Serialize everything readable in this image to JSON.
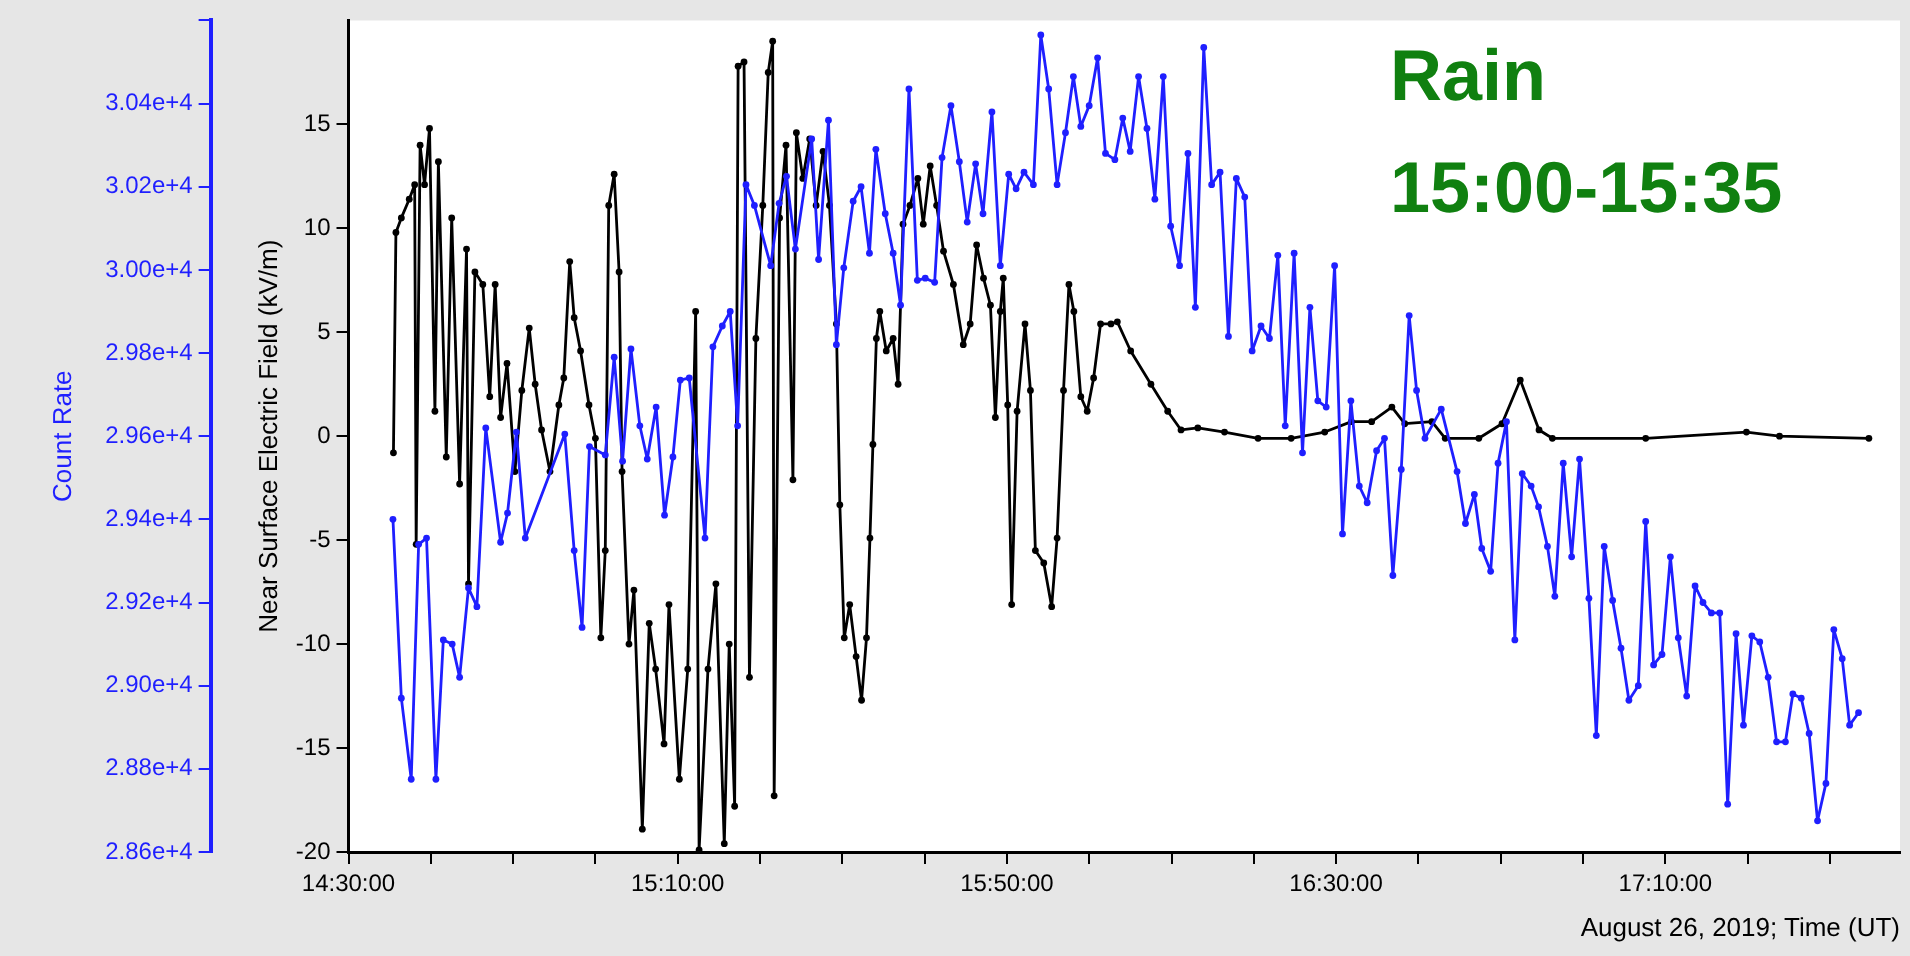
{
  "chart_data": {
    "type": "line",
    "xlabel": "August 26, 2019; Time (UT)",
    "ylabel": "Near Surface Electric Field (kV/m)",
    "y2label": "Count Rate",
    "annotations": [
      "Rain",
      "15:00-15:35"
    ],
    "xlim": [
      14.5,
      17.642
    ],
    "xticks": [
      {
        "value": 14.5,
        "label": "14:30:00"
      },
      {
        "value": 14.6667,
        "label": null
      },
      {
        "value": 14.8333,
        "label": null
      },
      {
        "value": 15,
        "label": null
      },
      {
        "value": 15.1667,
        "label": "15:10:00"
      },
      {
        "value": 15.3333,
        "label": null
      },
      {
        "value": 15.5,
        "label": null
      },
      {
        "value": 15.6667,
        "label": null
      },
      {
        "value": 15.8333,
        "label": "15:50:00"
      },
      {
        "value": 16,
        "label": null
      },
      {
        "value": 16.1667,
        "label": null
      },
      {
        "value": 16.3333,
        "label": null
      },
      {
        "value": 16.5,
        "label": "16:30:00"
      },
      {
        "value": 16.6667,
        "label": null
      },
      {
        "value": 16.8333,
        "label": null
      },
      {
        "value": 17,
        "label": null
      },
      {
        "value": 17.1667,
        "label": "17:10:00"
      },
      {
        "value": 17.3333,
        "label": null
      },
      {
        "value": 17.5,
        "label": null
      }
    ],
    "ylim": [
      -20,
      20
    ],
    "yticks": [
      -20,
      -15,
      -10,
      -5,
      0,
      5,
      10,
      15
    ],
    "y2lim": [
      28600,
      30600
    ],
    "y2ticks": [
      {
        "value": 28600,
        "label": "2.86e+4"
      },
      {
        "value": 28800,
        "label": "2.88e+4"
      },
      {
        "value": 29000,
        "label": "2.90e+4"
      },
      {
        "value": 29200,
        "label": "2.92e+4"
      },
      {
        "value": 29400,
        "label": "2.94e+4"
      },
      {
        "value": 29600,
        "label": "2.96e+4"
      },
      {
        "value": 29800,
        "label": "2.98e+4"
      },
      {
        "value": 30000,
        "label": "3.00e+4"
      },
      {
        "value": 30200,
        "label": "3.02e+4"
      },
      {
        "value": 30400,
        "label": "3.04e+4"
      },
      {
        "value": 30600,
        "label": null
      }
    ],
    "grid": false,
    "marker": "circle",
    "line_style": "solid",
    "series": [
      {
        "color": "#1f1fff",
        "axis": "y2",
        "x": [
          14.59,
          14.607,
          14.627,
          14.642,
          14.658,
          14.677,
          14.692,
          14.71,
          14.725,
          14.743,
          14.76,
          14.778,
          14.808,
          14.822,
          14.84,
          14.858,
          14.938,
          14.957,
          14.973,
          14.988,
          15.02,
          15.038,
          15.055,
          15.072,
          15.09,
          15.105,
          15.123,
          15.14,
          15.157,
          15.172,
          15.19,
          15.222,
          15.238,
          15.257,
          15.273,
          15.288,
          15.305,
          15.322,
          15.355,
          15.372,
          15.387,
          15.405,
          15.438,
          15.452,
          15.472,
          15.488,
          15.503,
          15.522,
          15.538,
          15.555,
          15.568,
          15.587,
          15.603,
          15.618,
          15.635,
          15.652,
          15.668,
          15.687,
          15.702,
          15.72,
          15.737,
          15.753,
          15.77,
          15.785,
          15.803,
          15.82,
          15.837,
          15.852,
          15.868,
          15.887,
          15.902,
          15.918,
          15.935,
          15.952,
          15.968,
          15.983,
          16.0,
          16.017,
          16.033,
          16.052,
          16.068,
          16.083,
          16.1,
          16.117,
          16.133,
          16.15,
          16.165,
          16.183,
          16.2,
          16.215,
          16.232,
          16.248,
          16.265,
          16.282,
          16.298,
          16.315,
          16.33,
          16.348,
          16.365,
          16.382,
          16.397,
          16.415,
          16.432,
          16.447,
          16.463,
          16.48,
          16.497,
          16.513,
          16.53,
          16.547,
          16.563,
          16.582,
          16.598,
          16.615,
          16.632,
          16.648,
          16.663,
          16.68,
          16.713,
          16.745,
          16.762,
          16.78,
          16.795,
          16.813,
          16.828,
          16.845,
          16.862,
          16.877,
          16.895,
          16.91,
          16.928,
          16.943,
          16.96,
          16.977,
          16.993,
          17.012,
          17.027,
          17.043,
          17.06,
          17.077,
          17.093,
          17.112,
          17.127,
          17.143,
          17.16,
          17.177,
          17.193,
          17.21,
          17.227,
          17.243,
          17.26,
          17.277,
          17.293,
          17.31,
          17.325,
          17.342,
          17.358,
          17.375,
          17.392,
          17.41,
          17.425,
          17.442,
          17.458,
          17.475,
          17.492,
          17.508,
          17.525,
          17.54,
          17.558
        ],
        "values": [
          29400,
          28970,
          28775,
          29340,
          29355,
          28775,
          29110,
          29100,
          29020,
          29235,
          29190,
          29620,
          29345,
          29415,
          29610,
          29355,
          29605,
          29325,
          29140,
          29575,
          29555,
          29790,
          29540,
          29810,
          29625,
          29545,
          29670,
          29410,
          29550,
          29735,
          29740,
          29355,
          29815,
          29865,
          29900,
          29625,
          30205,
          30155,
          30010,
          30160,
          30225,
          30050,
          30315,
          30025,
          30360,
          29820,
          30005,
          30165,
          30200,
          30040,
          30290,
          30135,
          30040,
          29915,
          30435,
          29975,
          29980,
          29970,
          30270,
          30395,
          30260,
          30115,
          30255,
          30135,
          30380,
          30010,
          30230,
          30195,
          30235,
          30205,
          30565,
          30435,
          30205,
          30330,
          30465,
          30345,
          30395,
          30510,
          30280,
          30265,
          30365,
          30285,
          30465,
          30340,
          30170,
          30465,
          30105,
          30010,
          30280,
          29910,
          30535,
          30205,
          30235,
          29840,
          30220,
          30175,
          29805,
          29865,
          29835,
          30035,
          29625,
          30040,
          29560,
          29910,
          29685,
          29670,
          30010,
          29365,
          29685,
          29480,
          29440,
          29565,
          29595,
          29265,
          29520,
          29890,
          29710,
          29595,
          29665,
          29515,
          29390,
          29460,
          29330,
          29275,
          29535,
          29635,
          29110,
          29510,
          29480,
          29430,
          29335,
          29215,
          29535,
          29310,
          29545,
          29210,
          28880,
          29335,
          29205,
          29090,
          28965,
          29000,
          29395,
          29050,
          29075,
          29310,
          29115,
          28975,
          29240,
          29200,
          29175,
          29175,
          28715,
          29125,
          28905,
          29120,
          29105,
          29020,
          28865,
          28865,
          28980,
          28970,
          28885,
          28675,
          28765,
          29135,
          29065,
          28905,
          28935
        ]
      },
      {
        "color": "#000000",
        "x": [
          14.591,
          14.596,
          14.607,
          14.623,
          14.634,
          14.637,
          14.645,
          14.654,
          14.664,
          14.675,
          14.682,
          14.698,
          14.709,
          14.725,
          14.739,
          14.743,
          14.756,
          14.772,
          14.786,
          14.797,
          14.808,
          14.821,
          14.837,
          14.851,
          14.866,
          14.878,
          14.891,
          14.908,
          14.926,
          14.936,
          14.948,
          14.957,
          14.97,
          14.987,
          15.0,
          15.011,
          15.02,
          15.027,
          15.038,
          15.048,
          15.054,
          15.068,
          15.078,
          15.095,
          15.109,
          15.122,
          15.139,
          15.149,
          15.17,
          15.187,
          15.203,
          15.21,
          15.228,
          15.244,
          15.261,
          15.271,
          15.282,
          15.289,
          15.301,
          15.312,
          15.325,
          15.339,
          15.35,
          15.359,
          15.362,
          15.373,
          15.386,
          15.4,
          15.407,
          15.42,
          15.434,
          15.447,
          15.461,
          15.474,
          15.488,
          15.495,
          15.504,
          15.515,
          15.528,
          15.539,
          15.549,
          15.556,
          15.562,
          15.569,
          15.576,
          15.589,
          15.603,
          15.613,
          15.623,
          15.637,
          15.653,
          15.664,
          15.678,
          15.691,
          15.705,
          15.725,
          15.745,
          15.759,
          15.772,
          15.786,
          15.8,
          15.81,
          15.82,
          15.826,
          15.835,
          15.843,
          15.854,
          15.87,
          15.881,
          15.891,
          15.908,
          15.924,
          15.935,
          15.948,
          15.959,
          15.969,
          15.983,
          15.996,
          16.009,
          16.023,
          16.044,
          16.057,
          16.084,
          16.125,
          16.159,
          16.186,
          16.22,
          16.274,
          16.342,
          16.409,
          16.477,
          16.531,
          16.572,
          16.613,
          16.639,
          16.694,
          16.721,
          16.789,
          16.836,
          16.873,
          16.911,
          16.938,
          17.127,
          17.331,
          17.398,
          17.579
        ],
        "values": [
          -0.8,
          9.8,
          10.5,
          11.4,
          12.1,
          -5.2,
          14.0,
          12.1,
          14.8,
          1.2,
          13.2,
          -1.0,
          10.5,
          -2.3,
          9.0,
          -7.1,
          7.9,
          7.3,
          1.9,
          7.3,
          0.9,
          3.5,
          -1.7,
          2.2,
          5.2,
          2.5,
          0.3,
          -1.7,
          1.5,
          2.8,
          8.4,
          5.7,
          4.1,
          1.5,
          -0.1,
          -9.7,
          -5.5,
          11.1,
          12.6,
          7.9,
          -1.7,
          -10.0,
          -7.4,
          -18.9,
          -9.0,
          -11.2,
          -14.8,
          -8.1,
          -16.5,
          -11.2,
          6.0,
          -19.9,
          -11.2,
          -7.1,
          -19.6,
          -10.0,
          -17.8,
          17.8,
          18.0,
          -11.6,
          4.7,
          11.1,
          17.5,
          19.0,
          -17.3,
          10.5,
          14.0,
          -2.1,
          14.6,
          12.4,
          14.3,
          11.1,
          13.7,
          11.1,
          5.4,
          -3.3,
          -9.7,
          -8.1,
          -10.6,
          -12.7,
          -9.7,
          -4.9,
          -0.4,
          4.7,
          6.0,
          4.1,
          4.7,
          2.5,
          10.2,
          11.1,
          12.4,
          10.2,
          13.0,
          11.1,
          8.9,
          7.3,
          4.4,
          5.4,
          9.2,
          7.6,
          6.3,
          0.9,
          6.0,
          7.6,
          1.5,
          -8.1,
          1.2,
          5.4,
          2.2,
          -5.5,
          -6.1,
          -8.2,
          -4.9,
          2.2,
          7.3,
          6.0,
          1.9,
          1.2,
          2.8,
          5.4,
          5.4,
          5.5,
          4.1,
          2.5,
          1.2,
          0.3,
          0.4,
          0.2,
          -0.1,
          -0.1,
          0.2,
          0.7,
          0.7,
          1.4,
          0.6,
          0.7,
          -0.1,
          -0.1,
          0.6,
          2.7,
          0.3,
          -0.1,
          -0.1,
          0.2,
          0.0,
          -0.1
        ]
      }
    ]
  }
}
